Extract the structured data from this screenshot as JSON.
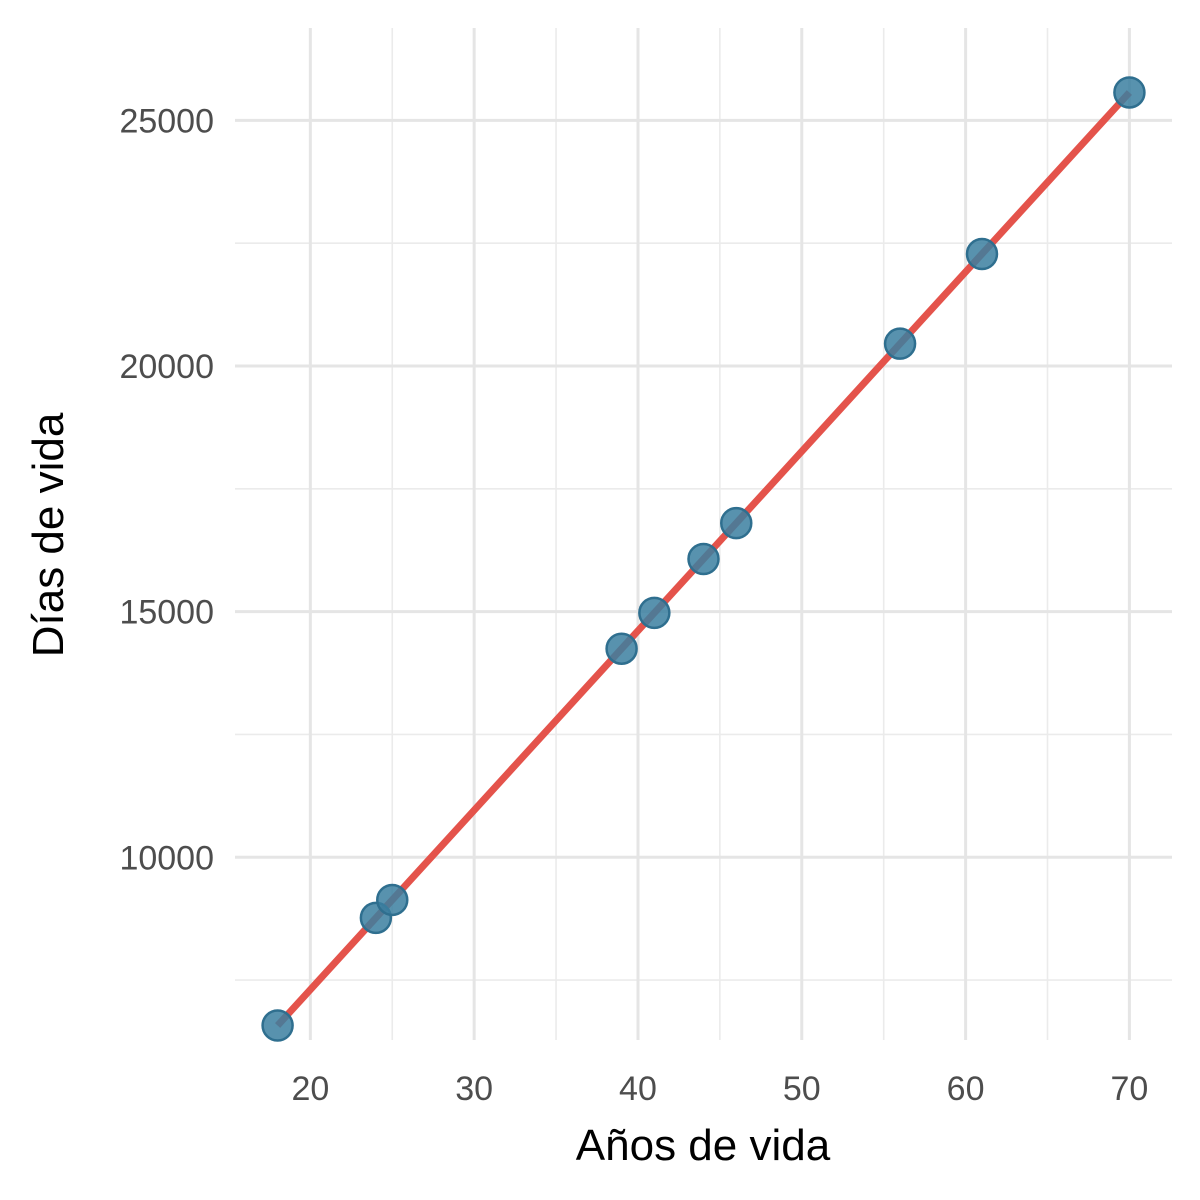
{
  "chart_data": {
    "type": "scatter",
    "xlabel": "Años de vida",
    "ylabel": "Días de vida",
    "xlim": [
      15.4,
      72.6
    ],
    "ylim": [
      6280,
      26880
    ],
    "x_ticks": [
      20,
      30,
      40,
      50,
      60,
      70
    ],
    "x_tick_labels": [
      "20",
      "30",
      "40",
      "50",
      "60",
      "70"
    ],
    "x_minor_ticks": [
      25,
      35,
      45,
      55,
      65
    ],
    "y_ticks": [
      10000,
      15000,
      20000,
      25000
    ],
    "y_tick_labels": [
      "10000",
      "15000",
      "20000",
      "25000"
    ],
    "y_minor_ticks": [
      7500,
      12500,
      17500,
      22500
    ],
    "grid": true,
    "points": [
      {
        "x": 18,
        "y": 6575
      },
      {
        "x": 24,
        "y": 8766
      },
      {
        "x": 25,
        "y": 9131
      },
      {
        "x": 39,
        "y": 14245
      },
      {
        "x": 41,
        "y": 14975
      },
      {
        "x": 44,
        "y": 16071
      },
      {
        "x": 46,
        "y": 16801
      },
      {
        "x": 56,
        "y": 20454
      },
      {
        "x": 61,
        "y": 22280
      },
      {
        "x": 70,
        "y": 25568
      }
    ],
    "fit_line": {
      "x": [
        18,
        70
      ],
      "y": [
        6575,
        25568
      ]
    },
    "colors": {
      "point_fill": "#3b7fa0",
      "point_stroke": "#2f6f8f",
      "line": "#e4534b",
      "grid": "#e5e5e5"
    }
  }
}
